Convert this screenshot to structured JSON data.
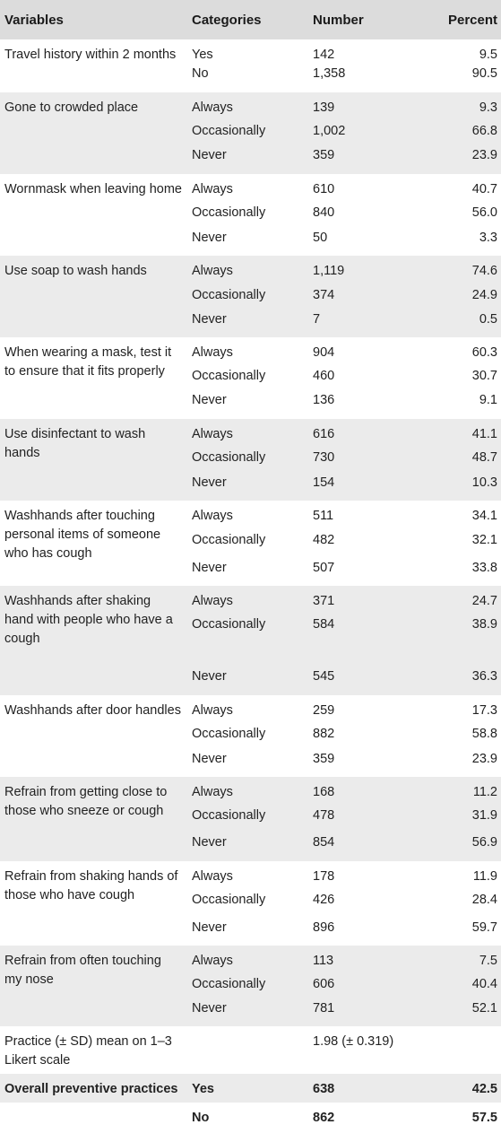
{
  "headers": [
    "Variables",
    "Categories",
    "Number",
    "Percent"
  ],
  "groups": [
    {
      "variable": "Travel history within 2 months",
      "rows": [
        {
          "category": "Yes",
          "number": "142",
          "percent": "9.5"
        },
        {
          "category": "No",
          "number": "1,358",
          "percent": "90.5"
        }
      ]
    },
    {
      "variable": "Gone to crowded place",
      "rows": [
        {
          "category": "Always",
          "number": "139",
          "percent": "9.3"
        },
        {
          "category": "Occasionally",
          "number": "1,002",
          "percent": "66.8"
        },
        {
          "category": "Never",
          "number": "359",
          "percent": "23.9"
        }
      ]
    },
    {
      "variable": "Wornmask when leaving home",
      "rows": [
        {
          "category": "Always",
          "number": "610",
          "percent": "40.7"
        },
        {
          "category": "Occasionally",
          "number": "840",
          "percent": "56.0"
        },
        {
          "category": "Never",
          "number": "50",
          "percent": "3.3"
        }
      ]
    },
    {
      "variable": "Use soap to wash hands",
      "rows": [
        {
          "category": "Always",
          "number": "1,119",
          "percent": "74.6"
        },
        {
          "category": "Occasionally",
          "number": "374",
          "percent": "24.9"
        },
        {
          "category": "Never",
          "number": "7",
          "percent": "0.5"
        }
      ]
    },
    {
      "variable": "When wearing a mask, test it to ensure that it fits properly",
      "rows": [
        {
          "category": "Always",
          "number": "904",
          "percent": "60.3"
        },
        {
          "category": "Occasionally",
          "number": "460",
          "percent": "30.7"
        },
        {
          "category": "Never",
          "number": "136",
          "percent": "9.1"
        }
      ]
    },
    {
      "variable": "Use disinfectant to wash hands",
      "rows": [
        {
          "category": "Always",
          "number": "616",
          "percent": "41.1"
        },
        {
          "category": "Occasionally",
          "number": "730",
          "percent": "48.7"
        },
        {
          "category": "Never",
          "number": "154",
          "percent": "10.3"
        }
      ]
    },
    {
      "variable": "Washhands after touching personal items of someone who has cough",
      "rows": [
        {
          "category": "Always",
          "number": "511",
          "percent": "34.1"
        },
        {
          "category": "Occasionally",
          "number": "482",
          "percent": "32.1"
        },
        {
          "category": "Never",
          "number": "507",
          "percent": "33.8"
        }
      ]
    },
    {
      "variable": "Washhands after shaking hand with people who have a cough",
      "rows": [
        {
          "category": "Always",
          "number": "371",
          "percent": "24.7"
        },
        {
          "category": "Occasionally",
          "number": "584",
          "percent": "38.9"
        },
        {
          "category": "Never",
          "number": "545",
          "percent": "36.3"
        }
      ]
    },
    {
      "variable": "Washhands after door handles",
      "rows": [
        {
          "category": "Always",
          "number": "259",
          "percent": "17.3"
        },
        {
          "category": "Occasionally",
          "number": "882",
          "percent": "58.8"
        },
        {
          "category": "Never",
          "number": "359",
          "percent": "23.9"
        }
      ]
    },
    {
      "variable": "Refrain from getting close to those who sneeze or cough",
      "rows": [
        {
          "category": "Always",
          "number": "168",
          "percent": "11.2"
        },
        {
          "category": "Occasionally",
          "number": "478",
          "percent": "31.9"
        },
        {
          "category": "Never",
          "number": "854",
          "percent": "56.9"
        }
      ]
    },
    {
      "variable": "Refrain from shaking hands of those who have cough",
      "rows": [
        {
          "category": "Always",
          "number": "178",
          "percent": "11.9"
        },
        {
          "category": "Occasionally",
          "number": "426",
          "percent": "28.4"
        },
        {
          "category": "Never",
          "number": "896",
          "percent": "59.7"
        }
      ]
    },
    {
      "variable": "Refrain from often touching my nose",
      "rows": [
        {
          "category": "Always",
          "number": "113",
          "percent": "7.5"
        },
        {
          "category": "Occasionally",
          "number": "606",
          "percent": "40.4"
        },
        {
          "category": "Never",
          "number": "781",
          "percent": "52.1"
        }
      ]
    }
  ],
  "practice_row": {
    "variable": "Practice (± SD) mean on 1–3 Likert scale",
    "category": "",
    "number": "1.98 (± 0.319)",
    "percent": ""
  },
  "overall": {
    "variable": "Overall preventive practices",
    "rows": [
      {
        "category": "Yes",
        "number": "638",
        "percent": "42.5"
      },
      {
        "category": "No",
        "number": "862",
        "percent": "57.5"
      }
    ]
  }
}
